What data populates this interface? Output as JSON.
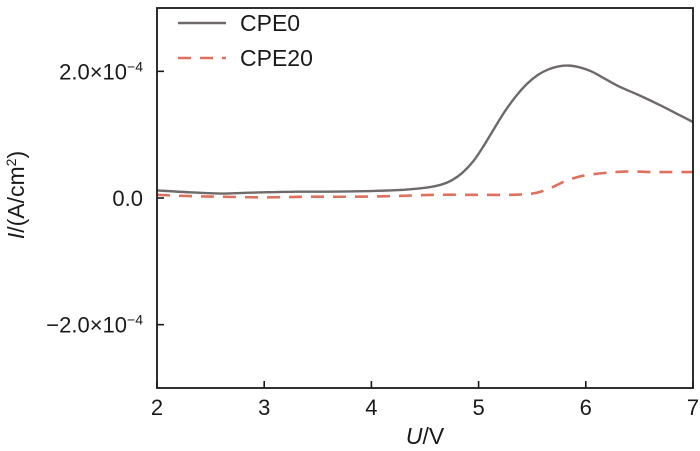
{
  "chart_data": {
    "type": "line",
    "xlabel": {
      "italic": "U",
      "rest": "/V"
    },
    "ylabel": {
      "italic": "I",
      "rest": "/(A/cm",
      "sup": "2",
      "close": ")"
    },
    "xlim": [
      2,
      7
    ],
    "ylim": [
      -0.0003,
      0.0003
    ],
    "x_ticks": [
      2,
      3,
      4,
      5,
      6,
      7
    ],
    "x_tick_labels": [
      "2",
      "3",
      "4",
      "5",
      "6",
      "7"
    ],
    "y_ticks": [
      -0.0002,
      0.0,
      0.0002
    ],
    "y_tick_labels": [
      {
        "base": "−2.0×10",
        "exp": "−4"
      },
      {
        "base": "0.0",
        "exp": ""
      },
      {
        "base": "2.0×10",
        "exp": "−4"
      }
    ],
    "grid": false,
    "legend_position": "top-left",
    "series": [
      {
        "name": "CPE0",
        "style": "solid",
        "color": "#6e6a6a",
        "x": [
          2.0,
          2.3,
          2.6,
          2.8,
          3.0,
          3.3,
          3.6,
          4.0,
          4.3,
          4.5,
          4.65,
          4.75,
          4.85,
          4.95,
          5.05,
          5.15,
          5.25,
          5.35,
          5.45,
          5.55,
          5.65,
          5.75,
          5.85,
          5.95,
          6.05,
          6.15,
          6.3,
          6.5,
          6.7,
          6.85,
          7.0
        ],
        "y": [
          1.2e-05,
          9e-06,
          7e-06,
          8e-06,
          9e-06,
          1e-05,
          1e-05,
          1.1e-05,
          1.3e-05,
          1.6e-05,
          2.1e-05,
          2.8e-05,
          4e-05,
          5.8e-05,
          8.3e-05,
          0.000111,
          0.000138,
          0.000161,
          0.00018,
          0.000194,
          0.000203,
          0.000208,
          0.000209,
          0.000206,
          0.0002,
          0.000191,
          0.000177,
          0.000162,
          0.000146,
          0.000133,
          0.00012
        ]
      },
      {
        "name": "CPE20",
        "style": "dashed",
        "color": "#e0705e",
        "x": [
          2.0,
          2.3,
          2.6,
          3.0,
          3.4,
          3.8,
          4.2,
          4.6,
          5.0,
          5.3,
          5.5,
          5.6,
          5.7,
          5.8,
          5.9,
          6.0,
          6.2,
          6.4,
          6.6,
          6.8,
          7.0
        ],
        "y": [
          5e-06,
          3e-06,
          2e-06,
          1e-06,
          2e-06,
          2e-06,
          3e-06,
          5e-06,
          5e-06,
          5e-06,
          7e-06,
          1.1e-05,
          1.8e-05,
          2.6e-05,
          3.2e-05,
          3.6e-05,
          4e-05,
          4.2e-05,
          4.1e-05,
          4.1e-05,
          4.1e-05
        ]
      }
    ]
  }
}
